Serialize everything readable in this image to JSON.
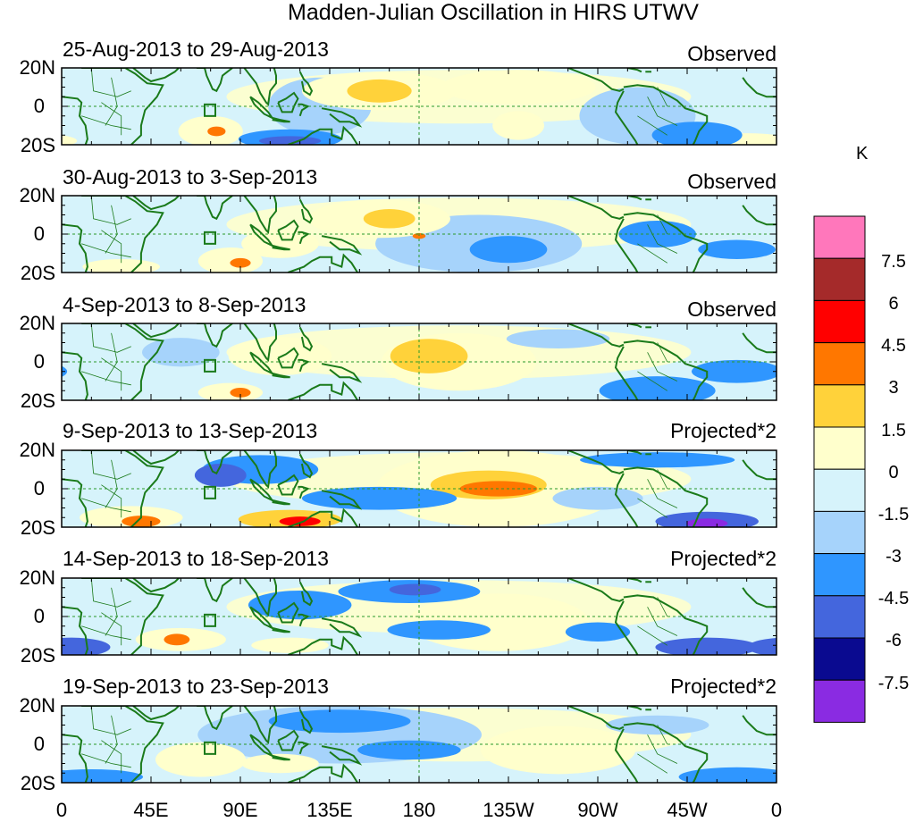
{
  "title": "Madden-Julian Oscillation in HIRS UTWV",
  "colorbar": {
    "unit": "K",
    "tick_labels": [
      "7.5",
      "6",
      "4.5",
      "3",
      "1.5",
      "0",
      "-1.5",
      "-3",
      "-4.5",
      "-6",
      "-7.5"
    ],
    "colors": [
      "#ff77bb",
      "#a52a2a",
      "#ff0000",
      "#ff7700",
      "#ffd23a",
      "#ffffcc",
      "#d6f3fb",
      "#a6d3fb",
      "#2f96ff",
      "#4466dd",
      "#0a0a90",
      "#8a2be2"
    ]
  },
  "lat_labels": [
    "20N",
    "0",
    "20S"
  ],
  "lon_labels": [
    "0",
    "45E",
    "90E",
    "135E",
    "180",
    "135W",
    "90W",
    "45W",
    "0"
  ],
  "panels": [
    {
      "date_range": "25-Aug-2013 to 29-Aug-2013",
      "kind": "Observed"
    },
    {
      "date_range": "30-Aug-2013 to 3-Sep-2013",
      "kind": "Observed"
    },
    {
      "date_range": "4-Sep-2013 to 8-Sep-2013",
      "kind": "Observed"
    },
    {
      "date_range": "9-Sep-2013 to 13-Sep-2013",
      "kind": "Projected*2"
    },
    {
      "date_range": "14-Sep-2013 to 18-Sep-2013",
      "kind": "Projected*2"
    },
    {
      "date_range": "19-Sep-2013 to 23-Sep-2013",
      "kind": "Projected*2"
    }
  ],
  "anomaly_blobs": [
    [
      {
        "lon": 130,
        "lat": 0,
        "w": 40,
        "h": 30,
        "v": -1.5
      },
      {
        "lon": 290,
        "lat": -5,
        "w": 45,
        "h": 30,
        "v": -1.5
      },
      {
        "lon": 160,
        "lat": 8,
        "w": 60,
        "h": 20,
        "v": 1.5
      },
      {
        "lon": 160,
        "lat": 8,
        "w": 25,
        "h": 12,
        "v": 3
      },
      {
        "lon": 75,
        "lat": -13,
        "w": 25,
        "h": 16,
        "v": 1.5
      },
      {
        "lon": 78,
        "lat": -13,
        "w": 7,
        "h": 5,
        "v": 4.5
      },
      {
        "lon": 115,
        "lat": -17,
        "w": 40,
        "h": 10,
        "v": -3
      },
      {
        "lon": 115,
        "lat": -18,
        "w": 24,
        "h": 5,
        "v": -4.5
      },
      {
        "lon": 230,
        "lat": -10,
        "w": 20,
        "h": 15,
        "v": 1.5
      },
      {
        "lon": 320,
        "lat": -15,
        "w": 35,
        "h": 14,
        "v": -3
      },
      {
        "lon": 345,
        "lat": -18,
        "w": 35,
        "h": 8,
        "v": 1.5
      },
      {
        "lon": 230,
        "lat": 10,
        "w": 60,
        "h": 18,
        "v": 1.5
      }
    ],
    [
      {
        "lon": 210,
        "lat": -5,
        "w": 80,
        "h": 30,
        "v": -1.5
      },
      {
        "lon": 160,
        "lat": 8,
        "w": 55,
        "h": 20,
        "v": 1.5
      },
      {
        "lon": 165,
        "lat": 8,
        "w": 20,
        "h": 10,
        "v": 3
      },
      {
        "lon": 180,
        "lat": -1,
        "w": 5,
        "h": 3,
        "v": 4.5
      },
      {
        "lon": 85,
        "lat": -14,
        "w": 25,
        "h": 14,
        "v": 1.5
      },
      {
        "lon": 90,
        "lat": -15,
        "w": 8,
        "h": 5,
        "v": 4.5
      },
      {
        "lon": 110,
        "lat": -5,
        "w": 30,
        "h": 15,
        "v": 1.5
      },
      {
        "lon": 30,
        "lat": -17,
        "w": 30,
        "h": 8,
        "v": 1.5
      },
      {
        "lon": 225,
        "lat": -8,
        "w": 30,
        "h": 14,
        "v": -3
      },
      {
        "lon": 300,
        "lat": 0,
        "w": 30,
        "h": 14,
        "v": -3
      },
      {
        "lon": 340,
        "lat": -8,
        "w": 30,
        "h": 10,
        "v": -3
      }
    ],
    [
      {
        "lon": 200,
        "lat": 0,
        "w": 60,
        "h": 30,
        "v": 1.5
      },
      {
        "lon": 185,
        "lat": 3,
        "w": 30,
        "h": 18,
        "v": 3
      },
      {
        "lon": 85,
        "lat": -16,
        "w": 25,
        "h": 10,
        "v": 1.5
      },
      {
        "lon": 90,
        "lat": -16,
        "w": 8,
        "h": 5,
        "v": 4.5
      },
      {
        "lon": 110,
        "lat": 3,
        "w": 40,
        "h": 20,
        "v": 1.5
      },
      {
        "lon": 300,
        "lat": -15,
        "w": 45,
        "h": 15,
        "v": -3
      },
      {
        "lon": 340,
        "lat": -5,
        "w": 35,
        "h": 12,
        "v": -3
      },
      {
        "lon": 250,
        "lat": 12,
        "w": 40,
        "h": 10,
        "v": -1.5
      },
      {
        "lon": 60,
        "lat": 5,
        "w": 30,
        "h": 15,
        "v": -1.5
      }
    ],
    [
      {
        "lon": 220,
        "lat": 0,
        "w": 95,
        "h": 40,
        "v": 1.5
      },
      {
        "lon": 215,
        "lat": 2,
        "w": 45,
        "h": 15,
        "v": 3
      },
      {
        "lon": 220,
        "lat": 0,
        "w": 30,
        "h": 8,
        "v": 4.5
      },
      {
        "lon": 100,
        "lat": 10,
        "w": 45,
        "h": 15,
        "v": -3
      },
      {
        "lon": 80,
        "lat": 7,
        "w": 20,
        "h": 12,
        "v": -4.5
      },
      {
        "lon": 160,
        "lat": -5,
        "w": 60,
        "h": 12,
        "v": -3
      },
      {
        "lon": 35,
        "lat": -15,
        "w": 40,
        "h": 12,
        "v": 1.5
      },
      {
        "lon": 40,
        "lat": -17,
        "w": 15,
        "h": 6,
        "v": 4.5
      },
      {
        "lon": 115,
        "lat": -16,
        "w": 40,
        "h": 10,
        "v": 3
      },
      {
        "lon": 120,
        "lat": -17,
        "w": 16,
        "h": 5,
        "v": 6
      },
      {
        "lon": 325,
        "lat": -17,
        "w": 40,
        "h": 10,
        "v": -4.5
      },
      {
        "lon": 325,
        "lat": -18,
        "w": 16,
        "h": 5,
        "v": -7.5
      },
      {
        "lon": 270,
        "lat": -5,
        "w": 35,
        "h": 12,
        "v": -1.5
      },
      {
        "lon": 300,
        "lat": 15,
        "w": 60,
        "h": 8,
        "v": -3
      }
    ],
    [
      {
        "lon": 220,
        "lat": -3,
        "w": 70,
        "h": 30,
        "v": 1.5
      },
      {
        "lon": 175,
        "lat": 13,
        "w": 55,
        "h": 12,
        "v": -3
      },
      {
        "lon": 178,
        "lat": 14,
        "w": 20,
        "h": 6,
        "v": -4.5
      },
      {
        "lon": 120,
        "lat": 6,
        "w": 40,
        "h": 15,
        "v": -3
      },
      {
        "lon": 190,
        "lat": -7,
        "w": 40,
        "h": 10,
        "v": -3
      },
      {
        "lon": 60,
        "lat": -12,
        "w": 35,
        "h": 12,
        "v": 1.5
      },
      {
        "lon": 58,
        "lat": -12,
        "w": 10,
        "h": 6,
        "v": 4.5
      },
      {
        "lon": 325,
        "lat": -16,
        "w": 40,
        "h": 10,
        "v": -4.5
      },
      {
        "lon": 5,
        "lat": -16,
        "w": 30,
        "h": 10,
        "v": -4.5
      },
      {
        "lon": 270,
        "lat": -8,
        "w": 25,
        "h": 10,
        "v": -3
      },
      {
        "lon": 115,
        "lat": -15,
        "w": 30,
        "h": 8,
        "v": 1.5
      }
    ],
    [
      {
        "lon": 140,
        "lat": 5,
        "w": 110,
        "h": 30,
        "v": -1.5
      },
      {
        "lon": 140,
        "lat": 12,
        "w": 55,
        "h": 12,
        "v": -3
      },
      {
        "lon": 175,
        "lat": -3,
        "w": 40,
        "h": 10,
        "v": -3
      },
      {
        "lon": 250,
        "lat": -3,
        "w": 60,
        "h": 25,
        "v": 1.5
      },
      {
        "lon": 70,
        "lat": -8,
        "w": 35,
        "h": 18,
        "v": 1.5
      },
      {
        "lon": 110,
        "lat": -10,
        "w": 30,
        "h": 10,
        "v": 1.5
      },
      {
        "lon": 340,
        "lat": -17,
        "w": 45,
        "h": 10,
        "v": -3
      },
      {
        "lon": 15,
        "lat": -17,
        "w": 40,
        "h": 8,
        "v": -3
      },
      {
        "lon": 300,
        "lat": 10,
        "w": 40,
        "h": 10,
        "v": -1.5
      }
    ]
  ]
}
